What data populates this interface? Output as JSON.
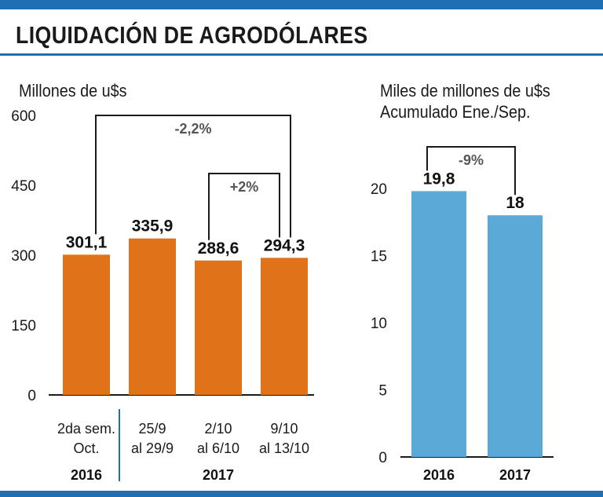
{
  "title": "LIQUIDACIÓN DE AGRODÓLARES",
  "colors": {
    "accent_blue": "#1f6fb2",
    "bar_orange": "#e07319",
    "bar_blue": "#5ba9d6",
    "annotation_gray": "#555555"
  },
  "chart_data": [
    {
      "type": "bar",
      "unit_label": "Millones de u$s",
      "categories": [
        {
          "lines": [
            "2da sem.",
            "Oct."
          ]
        },
        {
          "lines": [
            "25/9",
            "al 29/9"
          ]
        },
        {
          "lines": [
            "2/10",
            "al 6/10"
          ]
        },
        {
          "lines": [
            "9/10",
            "al 13/10"
          ]
        }
      ],
      "values": [
        301.1,
        335.9,
        288.6,
        294.3
      ],
      "value_labels": [
        "301,1",
        "335,9",
        "288,6",
        "294,3"
      ],
      "y_ticks": [
        0,
        150,
        300,
        450,
        600
      ],
      "ylim": [
        0,
        600
      ],
      "year_groups": [
        {
          "label": "2016",
          "from": 0,
          "to": 0
        },
        {
          "label": "2017",
          "from": 1,
          "to": 3
        }
      ],
      "annotations": [
        {
          "label": "-2,2%",
          "from": 0,
          "to": 3
        },
        {
          "label": "+2%",
          "from": 2,
          "to": 3
        }
      ],
      "grid": false
    },
    {
      "type": "bar",
      "unit_label": [
        "Miles de millones de u$s",
        "Acumulado Ene./Sep."
      ],
      "categories": [
        {
          "lines": [
            "2016"
          ]
        },
        {
          "lines": [
            "2017"
          ]
        }
      ],
      "values": [
        19.8,
        18
      ],
      "value_labels": [
        "19,8",
        "18"
      ],
      "y_ticks": [
        0,
        5,
        10,
        15,
        20
      ],
      "ylim": [
        0,
        20
      ],
      "annotations": [
        {
          "label": "-9%",
          "from": 0,
          "to": 1
        }
      ],
      "grid": false
    }
  ]
}
